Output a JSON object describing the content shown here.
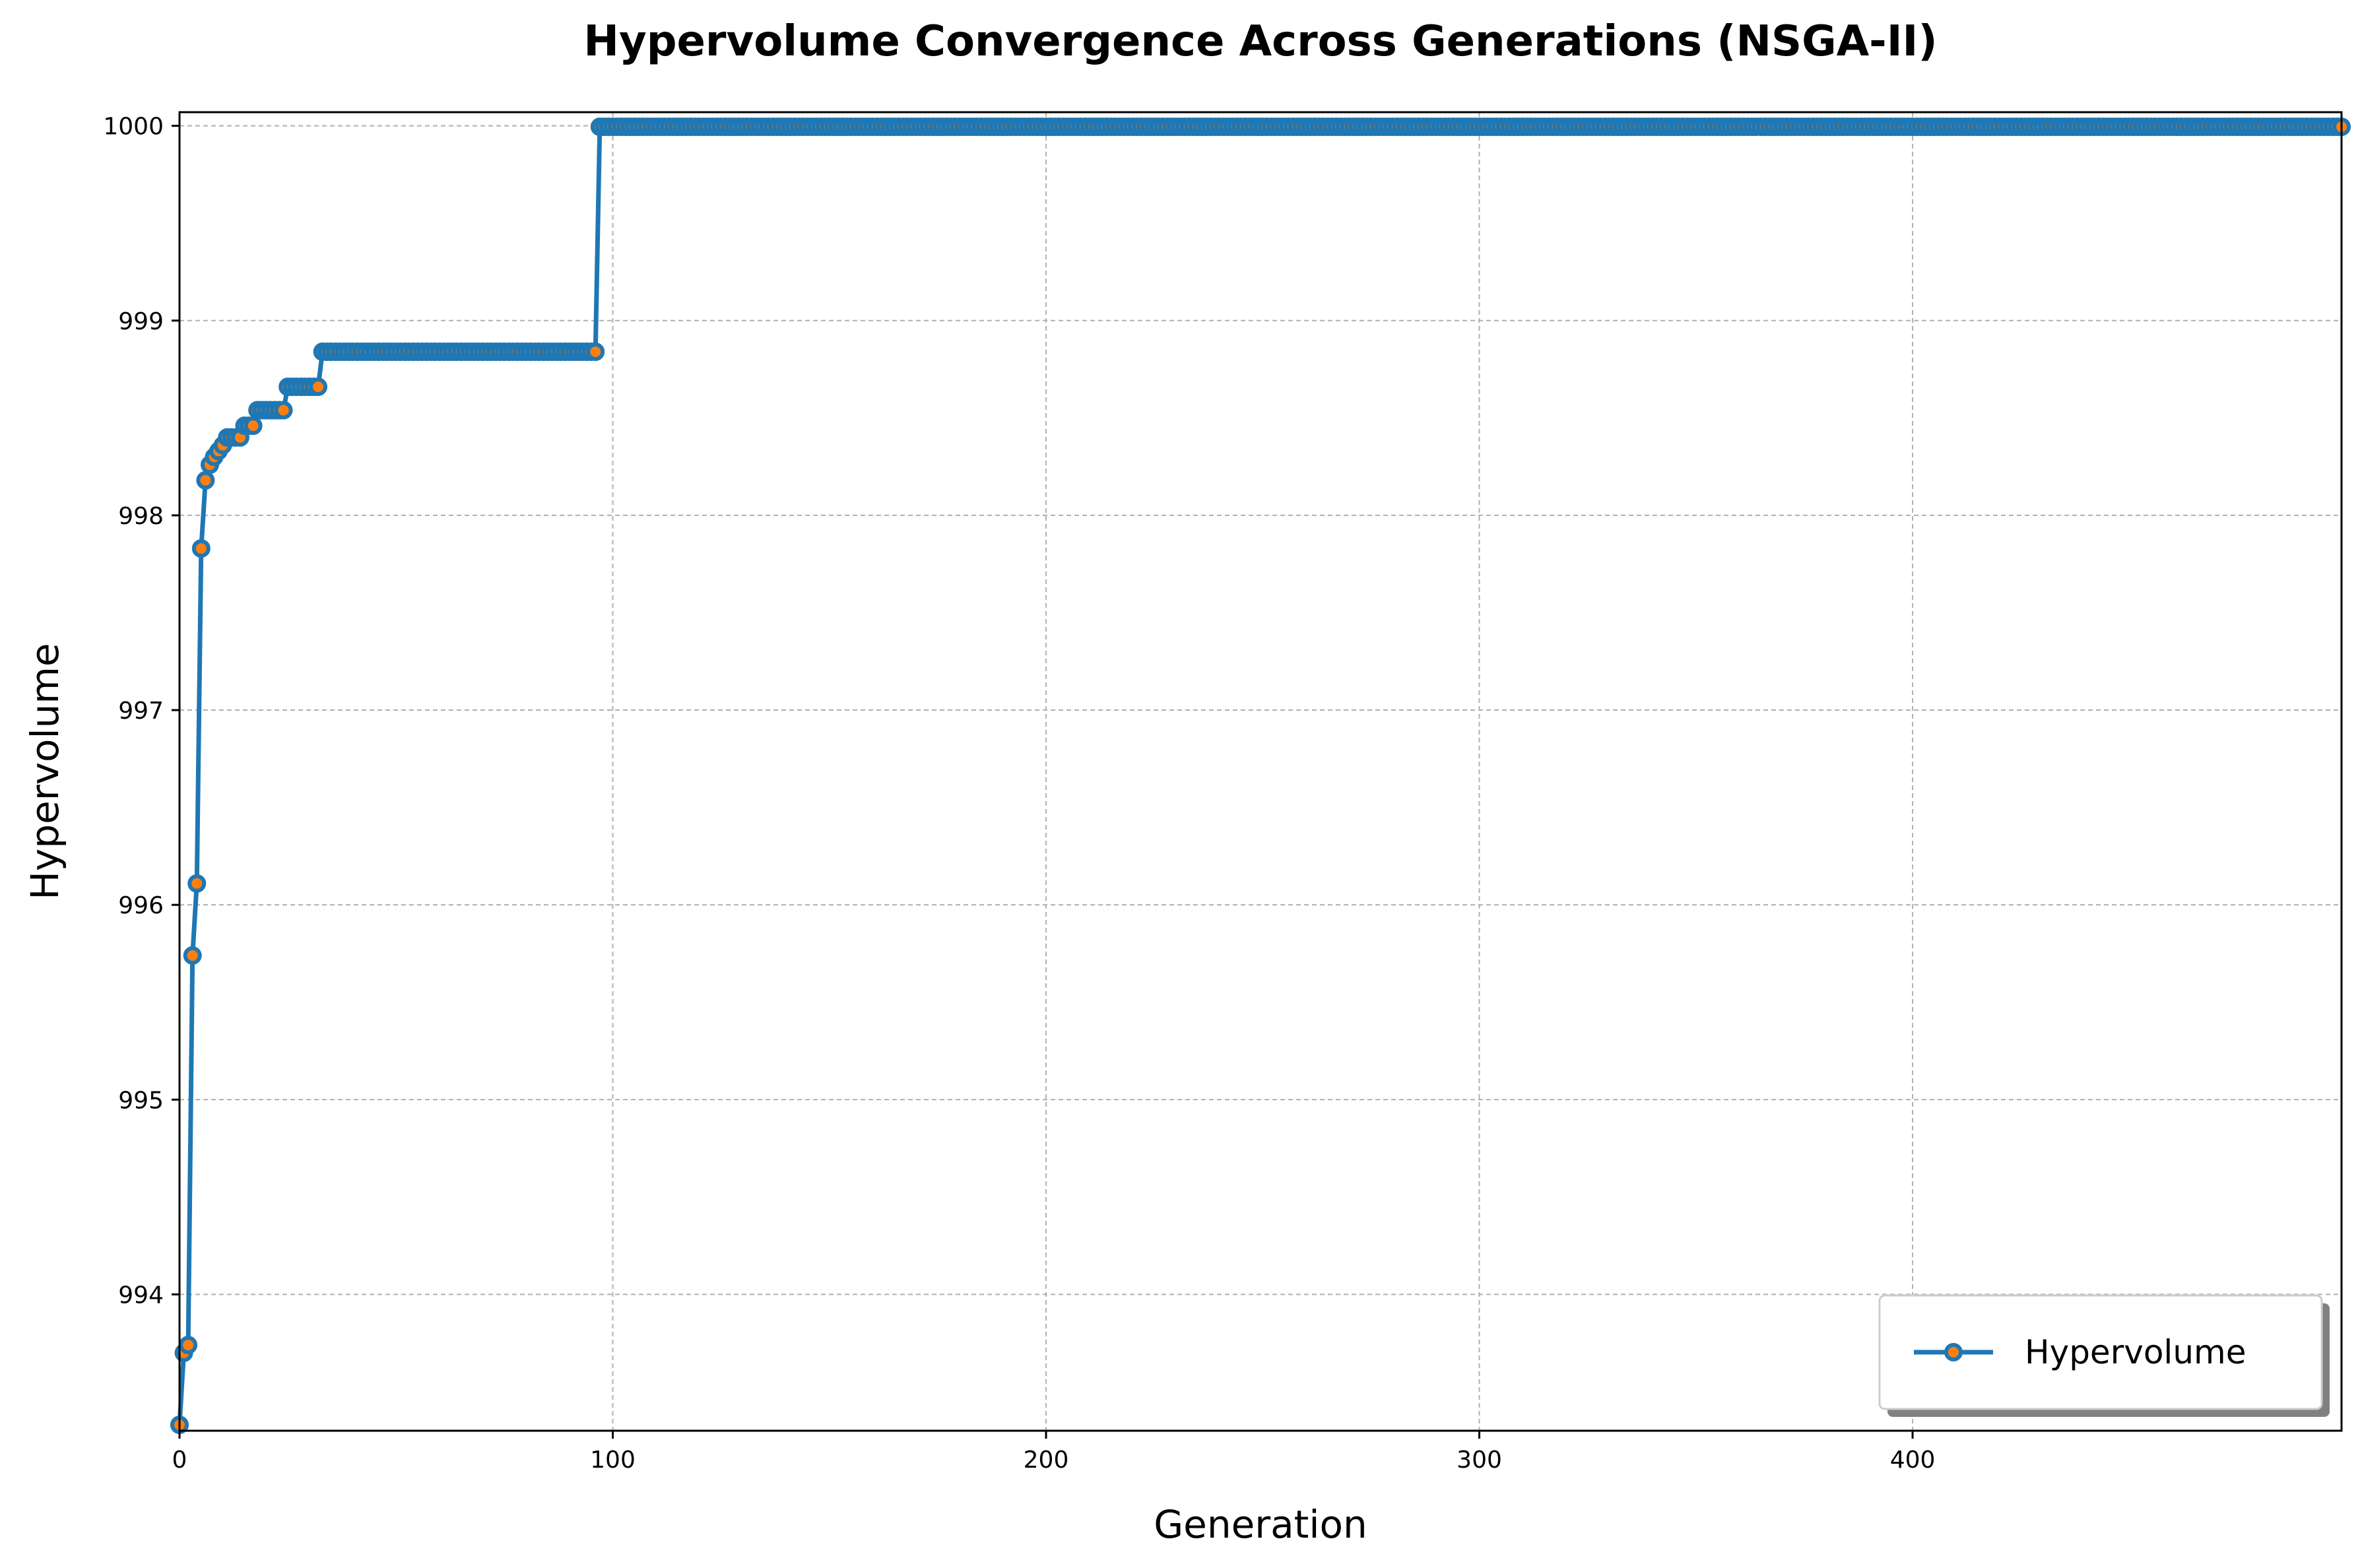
{
  "chart_data": {
    "type": "line",
    "title": "Hypervolume Convergence Across Generations (NSGA-II)",
    "xlabel": "Generation",
    "ylabel": "Hypervolume",
    "xlim": [
      0,
      499
    ],
    "ylim": [
      993.3,
      1000.07
    ],
    "xticks": [
      0,
      100,
      200,
      300,
      400
    ],
    "yticks": [
      994,
      995,
      996,
      997,
      998,
      999,
      1000
    ],
    "grid": true,
    "legend_position": "bottom-right",
    "series": [
      {
        "name": "Hypervolume",
        "color": "#1f77b4",
        "marker_face_color": "#ff7f0e",
        "steps": [
          {
            "start": 0,
            "end": 0,
            "value": 993.33
          },
          {
            "start": 1,
            "end": 1,
            "value": 993.7
          },
          {
            "start": 2,
            "end": 2,
            "value": 993.74
          },
          {
            "start": 3,
            "end": 3,
            "value": 995.74
          },
          {
            "start": 4,
            "end": 4,
            "value": 996.11
          },
          {
            "start": 5,
            "end": 5,
            "value": 997.83
          },
          {
            "start": 6,
            "end": 6,
            "value": 998.18
          },
          {
            "start": 7,
            "end": 7,
            "value": 998.26
          },
          {
            "start": 8,
            "end": 8,
            "value": 998.3
          },
          {
            "start": 9,
            "end": 9,
            "value": 998.33
          },
          {
            "start": 10,
            "end": 10,
            "value": 998.36
          },
          {
            "start": 11,
            "end": 14,
            "value": 998.4
          },
          {
            "start": 15,
            "end": 17,
            "value": 998.46
          },
          {
            "start": 18,
            "end": 24,
            "value": 998.54
          },
          {
            "start": 25,
            "end": 32,
            "value": 998.66
          },
          {
            "start": 33,
            "end": 96,
            "value": 998.84
          },
          {
            "start": 97,
            "end": 499,
            "value": 999.995
          }
        ]
      }
    ]
  }
}
